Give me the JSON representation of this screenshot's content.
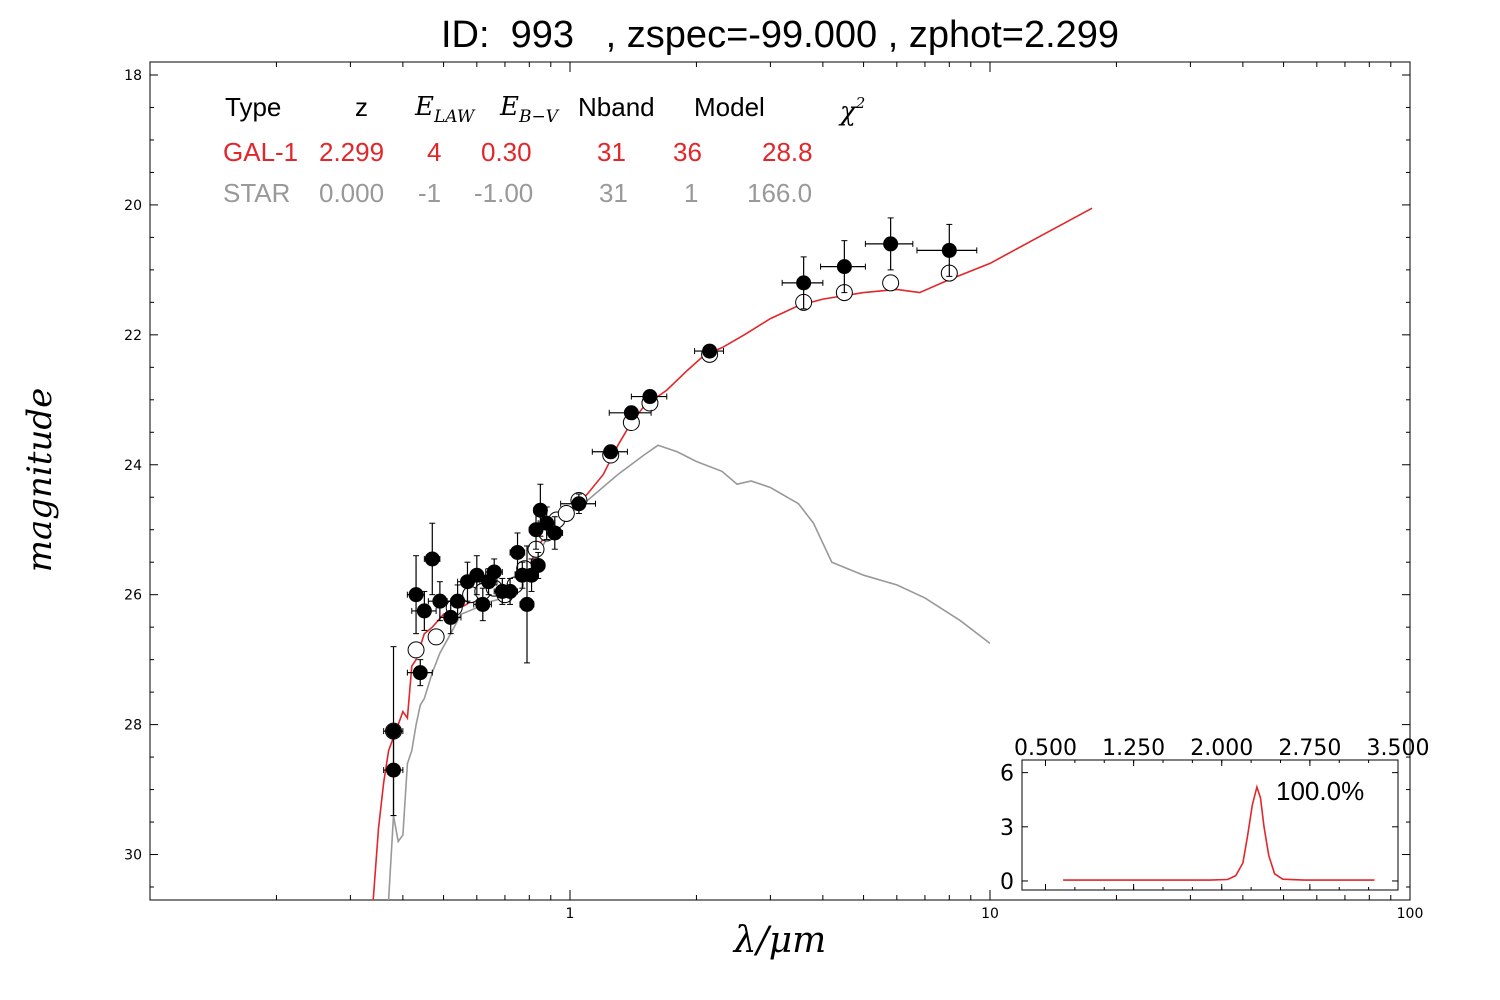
{
  "title": "ID:  993   , zspec=-99.000 , zphot=2.299",
  "axis": {
    "xlabel": "λ/μm",
    "ylabel": "magnitude"
  },
  "info_table": {
    "headers": [
      "Type",
      "z",
      "E_LAW",
      "E_B-V",
      "Nband",
      "Model",
      "χ²"
    ],
    "rows": [
      {
        "type": "GAL-1",
        "z": "2.299",
        "elaw": "4",
        "ebv": "0.30",
        "nband": "31",
        "model": "36",
        "chi2": "28.8",
        "color": "#e3262a"
      },
      {
        "type": "STAR",
        "z": "0.000",
        "elaw": "-1",
        "ebv": "-1.00",
        "nband": "31",
        "model": "1",
        "chi2": "166.0",
        "color": "#999999"
      }
    ]
  },
  "chart_data": [
    {
      "type": "scatter",
      "title": "",
      "xscale": "log",
      "xlim": [
        0.1,
        100
      ],
      "ylim": [
        30.7,
        17.8
      ],
      "y_inverted": true,
      "xticks": [
        1,
        10,
        100
      ],
      "xtick_labels": [
        "1",
        "10",
        "100"
      ],
      "yticks": [
        18,
        20,
        22,
        24,
        26,
        28,
        30
      ],
      "ytick_labels": [
        "18",
        "20",
        "22",
        "24",
        "26",
        "28",
        "30"
      ],
      "colors": {
        "galaxy_model": "#e3262a",
        "star_model": "#999999",
        "observed": "#000000",
        "model_mag": "#ffffff"
      },
      "observed_points": [
        {
          "x": 0.38,
          "y": 28.1,
          "yerr": 1.3,
          "xerr": 0.02
        },
        {
          "x": 0.38,
          "y": 28.7,
          "yerr": 0.7,
          "xerr": 0.02
        },
        {
          "x": 0.43,
          "y": 26.0,
          "yerr": 0.6,
          "xerr": 0.02
        },
        {
          "x": 0.44,
          "y": 27.2,
          "yerr": 0.2,
          "xerr": 0.03
        },
        {
          "x": 0.45,
          "y": 26.25,
          "yerr": 0.3,
          "xerr": 0.03
        },
        {
          "x": 0.47,
          "y": 25.45,
          "yerr": 0.55,
          "xerr": 0.02
        },
        {
          "x": 0.49,
          "y": 26.1,
          "yerr": 0.3,
          "xerr": 0.03
        },
        {
          "x": 0.52,
          "y": 26.35,
          "yerr": 0.25,
          "xerr": 0.03
        },
        {
          "x": 0.54,
          "y": 26.1,
          "yerr": 0.25,
          "xerr": 0.03
        },
        {
          "x": 0.57,
          "y": 25.8,
          "yerr": 0.3,
          "xerr": 0.03
        },
        {
          "x": 0.6,
          "y": 25.7,
          "yerr": 0.3,
          "xerr": 0.03
        },
        {
          "x": 0.62,
          "y": 26.15,
          "yerr": 0.25,
          "xerr": 0.03
        },
        {
          "x": 0.64,
          "y": 25.8,
          "yerr": 0.2,
          "xerr": 0.03
        },
        {
          "x": 0.66,
          "y": 25.65,
          "yerr": 0.2,
          "xerr": 0.03
        },
        {
          "x": 0.69,
          "y": 25.95,
          "yerr": 0.2,
          "xerr": 0.03
        },
        {
          "x": 0.72,
          "y": 25.95,
          "yerr": 0.2,
          "xerr": 0.03
        },
        {
          "x": 0.75,
          "y": 25.35,
          "yerr": 0.3,
          "xerr": 0.03
        },
        {
          "x": 0.77,
          "y": 25.7,
          "yerr": 0.2,
          "xerr": 0.03
        },
        {
          "x": 0.79,
          "y": 26.15,
          "yerr": 0.9,
          "xerr": 0.03
        },
        {
          "x": 0.81,
          "y": 25.7,
          "yerr": 0.25,
          "xerr": 0.03
        },
        {
          "x": 0.83,
          "y": 25.0,
          "yerr": 0.3,
          "xerr": 0.03
        },
        {
          "x": 0.84,
          "y": 25.55,
          "yerr": 0.2,
          "xerr": 0.03
        },
        {
          "x": 0.85,
          "y": 24.7,
          "yerr": 0.4,
          "xerr": 0.03
        },
        {
          "x": 0.88,
          "y": 24.9,
          "yerr": 0.25,
          "xerr": 0.04
        },
        {
          "x": 0.92,
          "y": 25.05,
          "yerr": 0.25,
          "xerr": 0.04
        },
        {
          "x": 1.05,
          "y": 24.6,
          "yerr": 0.15,
          "xerr": 0.1
        },
        {
          "x": 1.25,
          "y": 23.8,
          "yerr": 0.08,
          "xerr": 0.12
        },
        {
          "x": 1.4,
          "y": 23.2,
          "yerr": 0.1,
          "xerr": 0.16
        },
        {
          "x": 1.55,
          "y": 22.95,
          "yerr": 0.08,
          "xerr": 0.15
        },
        {
          "x": 2.15,
          "y": 22.25,
          "yerr": 0.08,
          "xerr": 0.17
        },
        {
          "x": 3.6,
          "y": 21.2,
          "yerr": 0.4,
          "xerr": 0.4
        },
        {
          "x": 4.5,
          "y": 20.95,
          "yerr": 0.4,
          "xerr": 0.55
        },
        {
          "x": 5.8,
          "y": 20.6,
          "yerr": 0.4,
          "xerr": 0.75
        },
        {
          "x": 8.0,
          "y": 20.7,
          "yerr": 0.4,
          "xerr": 1.3
        }
      ],
      "model_points": [
        {
          "x": 0.38,
          "y": 28.1
        },
        {
          "x": 0.43,
          "y": 26.85
        },
        {
          "x": 0.48,
          "y": 26.65
        },
        {
          "x": 0.53,
          "y": 26.2
        },
        {
          "x": 0.58,
          "y": 26.0
        },
        {
          "x": 0.62,
          "y": 25.95
        },
        {
          "x": 0.66,
          "y": 25.9
        },
        {
          "x": 0.7,
          "y": 26.0
        },
        {
          "x": 0.74,
          "y": 25.85
        },
        {
          "x": 0.78,
          "y": 25.6
        },
        {
          "x": 0.83,
          "y": 25.3
        },
        {
          "x": 0.88,
          "y": 25.05
        },
        {
          "x": 0.93,
          "y": 24.85
        },
        {
          "x": 0.98,
          "y": 24.75
        },
        {
          "x": 1.05,
          "y": 24.55
        },
        {
          "x": 1.25,
          "y": 23.85
        },
        {
          "x": 1.4,
          "y": 23.35
        },
        {
          "x": 1.55,
          "y": 23.05
        },
        {
          "x": 2.15,
          "y": 22.3
        },
        {
          "x": 3.6,
          "y": 21.5
        },
        {
          "x": 4.5,
          "y": 21.35
        },
        {
          "x": 5.8,
          "y": 21.2
        },
        {
          "x": 8.0,
          "y": 21.05
        }
      ],
      "galaxy_model_curve": [
        [
          0.34,
          30.7
        ],
        [
          0.35,
          29.6
        ],
        [
          0.36,
          28.9
        ],
        [
          0.37,
          28.4
        ],
        [
          0.39,
          28.0
        ],
        [
          0.4,
          27.8
        ],
        [
          0.41,
          27.9
        ],
        [
          0.42,
          27.1
        ],
        [
          0.43,
          27.0
        ],
        [
          0.45,
          26.6
        ],
        [
          0.47,
          26.5
        ],
        [
          0.5,
          26.3
        ],
        [
          0.55,
          26.2
        ],
        [
          0.6,
          26.05
        ],
        [
          0.65,
          26.0
        ],
        [
          0.7,
          25.95
        ],
        [
          0.75,
          25.85
        ],
        [
          0.8,
          25.55
        ],
        [
          0.85,
          25.2
        ],
        [
          0.9,
          25.0
        ],
        [
          0.95,
          24.85
        ],
        [
          1.0,
          24.7
        ],
        [
          1.1,
          24.45
        ],
        [
          1.2,
          24.15
        ],
        [
          1.3,
          23.7
        ],
        [
          1.4,
          23.35
        ],
        [
          1.5,
          23.1
        ],
        [
          1.7,
          22.85
        ],
        [
          1.9,
          22.55
        ],
        [
          2.1,
          22.3
        ],
        [
          2.3,
          22.2
        ],
        [
          2.6,
          22.0
        ],
        [
          3.0,
          21.75
        ],
        [
          3.5,
          21.55
        ],
        [
          4.0,
          21.45
        ],
        [
          5.0,
          21.35
        ],
        [
          6.0,
          21.3
        ],
        [
          6.8,
          21.35
        ],
        [
          8.0,
          21.15
        ],
        [
          10,
          20.9
        ],
        [
          13,
          20.5
        ],
        [
          17.5,
          20.05
        ]
      ],
      "star_model_curve": [
        [
          0.37,
          30.7
        ],
        [
          0.38,
          29.4
        ],
        [
          0.39,
          29.8
        ],
        [
          0.4,
          29.7
        ],
        [
          0.41,
          28.6
        ],
        [
          0.42,
          28.4
        ],
        [
          0.43,
          28.0
        ],
        [
          0.44,
          27.7
        ],
        [
          0.45,
          27.6
        ],
        [
          0.47,
          27.2
        ],
        [
          0.49,
          26.9
        ],
        [
          0.52,
          26.6
        ],
        [
          0.55,
          26.3
        ],
        [
          0.6,
          26.2
        ],
        [
          0.65,
          26.1
        ],
        [
          0.7,
          26.05
        ],
        [
          0.75,
          25.9
        ],
        [
          0.8,
          25.6
        ],
        [
          0.85,
          25.3
        ],
        [
          0.9,
          25.05
        ],
        [
          1.0,
          24.75
        ],
        [
          1.1,
          24.55
        ],
        [
          1.3,
          24.15
        ],
        [
          1.5,
          23.85
        ],
        [
          1.62,
          23.7
        ],
        [
          1.8,
          23.8
        ],
        [
          2.0,
          23.95
        ],
        [
          2.3,
          24.1
        ],
        [
          2.5,
          24.3
        ],
        [
          2.7,
          24.25
        ],
        [
          3.0,
          24.35
        ],
        [
          3.5,
          24.6
        ],
        [
          3.8,
          24.9
        ],
        [
          4.2,
          25.5
        ],
        [
          5.0,
          25.7
        ],
        [
          6.0,
          25.85
        ],
        [
          7.0,
          26.05
        ],
        [
          8.5,
          26.4
        ],
        [
          10,
          26.75
        ]
      ]
    },
    {
      "type": "line",
      "title": "",
      "xlim": [
        0.3,
        3.5
      ],
      "ylim": [
        -0.5,
        6.7
      ],
      "xticks": [
        0.5,
        1.25,
        2.0,
        2.75,
        3.5
      ],
      "xtick_labels": [
        "0.500",
        "1.250",
        "2.000",
        "2.750",
        "3.500"
      ],
      "yticks": [
        0,
        3,
        6
      ],
      "ytick_labels": [
        "0",
        "3",
        "6"
      ],
      "annotation": "100.0%",
      "color": "#e3262a",
      "pdz": [
        [
          0.65,
          0.05
        ],
        [
          1.0,
          0.05
        ],
        [
          1.5,
          0.05
        ],
        [
          1.9,
          0.05
        ],
        [
          2.05,
          0.08
        ],
        [
          2.12,
          0.3
        ],
        [
          2.18,
          1.0
        ],
        [
          2.22,
          2.5
        ],
        [
          2.26,
          4.2
        ],
        [
          2.299,
          5.2
        ],
        [
          2.33,
          4.6
        ],
        [
          2.36,
          3.0
        ],
        [
          2.4,
          1.4
        ],
        [
          2.45,
          0.4
        ],
        [
          2.52,
          0.1
        ],
        [
          2.7,
          0.05
        ],
        [
          3.0,
          0.05
        ],
        [
          3.3,
          0.05
        ]
      ]
    }
  ]
}
